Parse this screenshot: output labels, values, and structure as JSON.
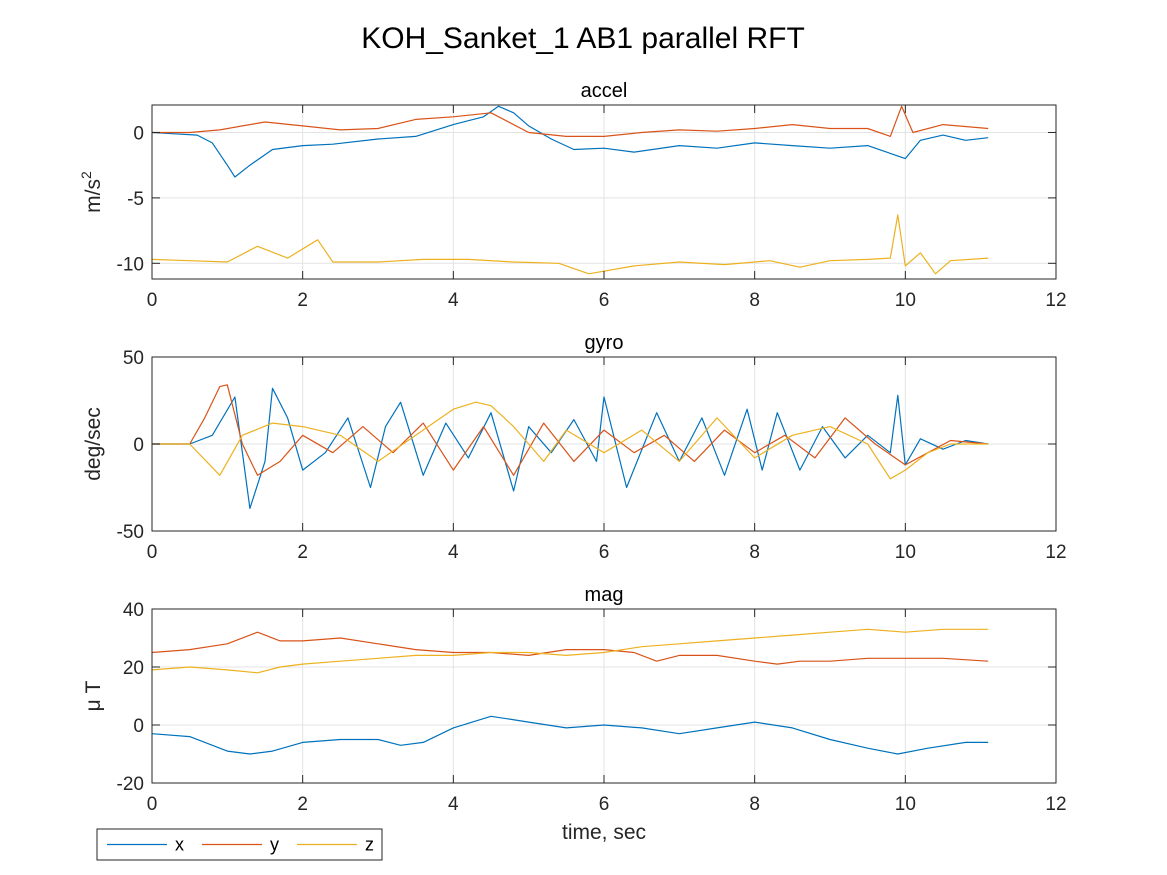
{
  "figure": {
    "title": "KOH_Sanket_1 AB1 parallel RFT",
    "legend": {
      "placement": "bottom-left",
      "entries": [
        "x",
        "y",
        "z"
      ]
    }
  },
  "colors": {
    "x": "#0072BD",
    "y": "#D95319",
    "z": "#EDB120",
    "grid": "#e3e3e3",
    "axis": "#262626"
  },
  "chart_data": [
    {
      "type": "line",
      "title": "accel",
      "ylabel": "m/s",
      "ylabel_sup": "2",
      "xlabel": "",
      "xlim": [
        0,
        12
      ],
      "ylim": [
        -11.2,
        2.1
      ],
      "xticks": [
        0,
        2,
        4,
        6,
        8,
        10,
        12
      ],
      "yticks": [
        -10,
        -5,
        0
      ],
      "grid": true,
      "series": [
        {
          "name": "x",
          "color": "#0072BD",
          "x": [
            0,
            0.3,
            0.6,
            0.8,
            1.0,
            1.1,
            1.3,
            1.6,
            2.0,
            2.4,
            3.0,
            3.5,
            4.0,
            4.4,
            4.6,
            4.8,
            5.0,
            5.3,
            5.6,
            6.0,
            6.4,
            7.0,
            7.5,
            8.0,
            8.5,
            9.0,
            9.5,
            9.8,
            10.0,
            10.2,
            10.5,
            10.8,
            11.1
          ],
          "y": [
            0,
            -0.1,
            -0.2,
            -0.8,
            -2.5,
            -3.4,
            -2.5,
            -1.3,
            -1.0,
            -0.9,
            -0.5,
            -0.3,
            0.6,
            1.2,
            2.0,
            1.5,
            0.5,
            -0.5,
            -1.3,
            -1.2,
            -1.5,
            -1.0,
            -1.2,
            -0.8,
            -1.0,
            -1.2,
            -1.0,
            -1.6,
            -2.0,
            -0.6,
            -0.2,
            -0.6,
            -0.4
          ]
        },
        {
          "name": "y",
          "color": "#D95319",
          "x": [
            0,
            0.5,
            0.9,
            1.2,
            1.5,
            2.0,
            2.5,
            3.0,
            3.5,
            4.0,
            4.5,
            5.0,
            5.5,
            6.0,
            6.5,
            7.0,
            7.5,
            8.0,
            8.5,
            9.0,
            9.5,
            9.8,
            9.95,
            10.1,
            10.5,
            11.1
          ],
          "y": [
            0,
            0,
            0.2,
            0.5,
            0.8,
            0.5,
            0.2,
            0.3,
            1.0,
            1.2,
            1.5,
            0.0,
            -0.3,
            -0.3,
            0.0,
            0.2,
            0.1,
            0.3,
            0.6,
            0.3,
            0.3,
            -0.3,
            2.0,
            0.0,
            0.6,
            0.3
          ]
        },
        {
          "name": "z",
          "color": "#EDB120",
          "x": [
            0,
            0.5,
            1.0,
            1.4,
            1.8,
            2.2,
            2.4,
            3.0,
            3.6,
            4.2,
            4.8,
            5.4,
            5.8,
            6.4,
            7.0,
            7.6,
            8.2,
            8.6,
            9.0,
            9.5,
            9.8,
            9.9,
            10.0,
            10.2,
            10.4,
            10.6,
            11.1
          ],
          "y": [
            -9.7,
            -9.8,
            -9.9,
            -8.7,
            -9.6,
            -8.2,
            -9.9,
            -9.9,
            -9.7,
            -9.7,
            -9.9,
            -10.0,
            -10.8,
            -10.2,
            -9.9,
            -10.1,
            -9.8,
            -10.3,
            -9.8,
            -9.7,
            -9.6,
            -6.3,
            -10.2,
            -9.2,
            -10.8,
            -9.8,
            -9.6
          ]
        }
      ]
    },
    {
      "type": "line",
      "title": "gyro",
      "ylabel": "deg/sec",
      "xlabel": "",
      "xlim": [
        0,
        12
      ],
      "ylim": [
        -50,
        50
      ],
      "xticks": [
        0,
        2,
        4,
        6,
        8,
        10,
        12
      ],
      "yticks": [
        -50,
        0,
        50
      ],
      "grid": true,
      "series": [
        {
          "name": "x",
          "color": "#0072BD",
          "x": [
            0,
            0.5,
            0.8,
            1.1,
            1.3,
            1.5,
            1.6,
            1.8,
            2.0,
            2.3,
            2.6,
            2.9,
            3.1,
            3.3,
            3.6,
            3.9,
            4.2,
            4.5,
            4.8,
            5.0,
            5.3,
            5.6,
            5.9,
            6.0,
            6.3,
            6.7,
            7.0,
            7.3,
            7.6,
            7.9,
            8.1,
            8.3,
            8.6,
            8.9,
            9.2,
            9.5,
            9.8,
            9.9,
            10.0,
            10.2,
            10.5,
            10.8,
            11.1
          ],
          "y": [
            0,
            0,
            5,
            27,
            -37,
            -10,
            32,
            15,
            -15,
            -5,
            15,
            -25,
            10,
            24,
            -18,
            12,
            -8,
            18,
            -27,
            10,
            -5,
            14,
            -10,
            27,
            -25,
            18,
            -10,
            15,
            -18,
            20,
            -15,
            18,
            -15,
            10,
            -8,
            5,
            -5,
            28,
            -12,
            3,
            -3,
            2,
            0
          ]
        },
        {
          "name": "y",
          "color": "#D95319",
          "x": [
            0,
            0.5,
            0.7,
            0.9,
            1.0,
            1.2,
            1.4,
            1.7,
            2.0,
            2.4,
            2.8,
            3.2,
            3.6,
            4.0,
            4.4,
            4.8,
            5.2,
            5.6,
            6.0,
            6.4,
            6.8,
            7.2,
            7.6,
            8.0,
            8.4,
            8.8,
            9.2,
            9.6,
            10.0,
            10.3,
            10.6,
            11.1
          ],
          "y": [
            0,
            0,
            15,
            33,
            34,
            0,
            -18,
            -10,
            5,
            -5,
            10,
            -5,
            12,
            -15,
            10,
            -18,
            12,
            -10,
            8,
            -5,
            5,
            -10,
            8,
            -5,
            5,
            -8,
            15,
            0,
            -12,
            -5,
            2,
            0
          ]
        },
        {
          "name": "z",
          "color": "#EDB120",
          "x": [
            0,
            0.5,
            0.9,
            1.2,
            1.6,
            2.0,
            2.5,
            3.0,
            3.5,
            4.0,
            4.3,
            4.5,
            4.8,
            5.2,
            5.5,
            6.0,
            6.5,
            7.0,
            7.5,
            8.0,
            8.5,
            9.0,
            9.5,
            9.8,
            10.0,
            10.3,
            10.6,
            11.1
          ],
          "y": [
            0,
            0,
            -18,
            5,
            12,
            10,
            5,
            -10,
            5,
            20,
            24,
            22,
            10,
            -10,
            8,
            -5,
            8,
            -10,
            15,
            -8,
            5,
            10,
            0,
            -20,
            -15,
            -5,
            0,
            0
          ]
        }
      ]
    },
    {
      "type": "line",
      "title": "mag",
      "ylabel": "μ T",
      "xlabel": "time, sec",
      "xlim": [
        0,
        12
      ],
      "ylim": [
        -20,
        40
      ],
      "xticks": [
        0,
        2,
        4,
        6,
        8,
        10,
        12
      ],
      "yticks": [
        -20,
        0,
        20,
        40
      ],
      "grid": true,
      "series": [
        {
          "name": "x",
          "color": "#0072BD",
          "x": [
            0,
            0.5,
            1.0,
            1.3,
            1.6,
            2.0,
            2.5,
            3.0,
            3.3,
            3.6,
            4.0,
            4.5,
            5.0,
            5.5,
            6.0,
            6.5,
            7.0,
            7.5,
            8.0,
            8.5,
            9.0,
            9.5,
            9.9,
            10.3,
            10.8,
            11.1
          ],
          "y": [
            -3,
            -4,
            -9,
            -10,
            -9,
            -6,
            -5,
            -5,
            -7,
            -6,
            -1,
            3,
            1,
            -1,
            0,
            -1,
            -3,
            -1,
            1,
            -1,
            -5,
            -8,
            -10,
            -8,
            -6,
            -6
          ]
        },
        {
          "name": "y",
          "color": "#D95319",
          "x": [
            0,
            0.5,
            1.0,
            1.4,
            1.7,
            2.0,
            2.5,
            3.0,
            3.5,
            4.0,
            4.5,
            5.0,
            5.5,
            6.0,
            6.4,
            6.7,
            7.0,
            7.5,
            8.0,
            8.3,
            8.6,
            9.0,
            9.5,
            10.0,
            10.5,
            11.1
          ],
          "y": [
            25,
            26,
            28,
            32,
            29,
            29,
            30,
            28,
            26,
            25,
            25,
            24,
            26,
            26,
            25,
            22,
            24,
            24,
            22,
            21,
            22,
            22,
            23,
            23,
            23,
            22
          ]
        },
        {
          "name": "z",
          "color": "#EDB120",
          "x": [
            0,
            0.5,
            1.0,
            1.4,
            1.7,
            2.0,
            2.5,
            3.0,
            3.5,
            4.0,
            4.5,
            5.0,
            5.5,
            6.0,
            6.5,
            7.0,
            7.5,
            8.0,
            8.5,
            9.0,
            9.5,
            10.0,
            10.5,
            11.1
          ],
          "y": [
            19,
            20,
            19,
            18,
            20,
            21,
            22,
            23,
            24,
            24,
            25,
            25,
            24,
            25,
            27,
            28,
            29,
            30,
            31,
            32,
            33,
            32,
            33,
            33
          ]
        }
      ]
    }
  ]
}
